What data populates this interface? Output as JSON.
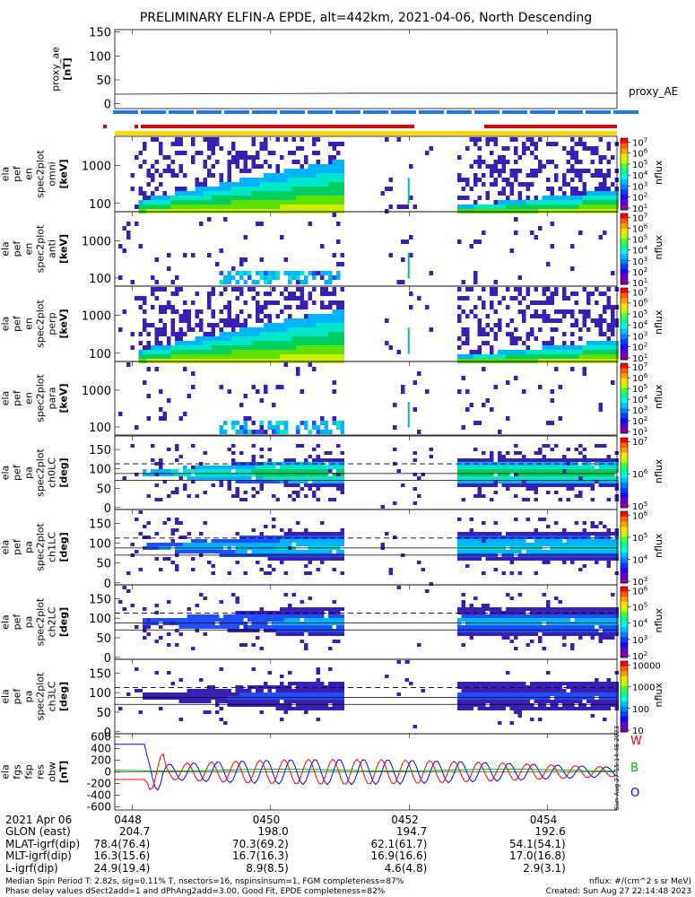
{
  "title": "PRELIMINARY ELFIN-A EPDE, alt=442km, 2021-04-06, North Descending",
  "colors": {
    "red_bar": "#e00000",
    "blue_bar": "#1e7be8",
    "yellow_bar": "#ffd700",
    "green_line": "#00b000",
    "blue_line": "#0000ff",
    "red_line": "#ff0000"
  },
  "chart_data": [
    {
      "type": "line",
      "panel": "proxy_ae",
      "ylabel": "proxy_ae [nT]",
      "legend": "proxy_AE",
      "ylim": [
        -10,
        155
      ],
      "yticks": [
        0,
        50,
        100,
        150
      ],
      "x": [
        "04:47:45",
        "04:51:10",
        "04:55:00"
      ],
      "values": [
        20,
        22,
        22
      ]
    },
    {
      "type": "heatmap",
      "panel": "ela_pef_en_spec2plot_omni",
      "ylabel_lines": [
        "ela",
        "pef",
        "en",
        "spec2plot",
        "omni",
        "[keV]"
      ],
      "yticks": [
        100,
        1000
      ],
      "colorbar_ticks": [
        "10^1",
        "10^2",
        "10^3",
        "10^4",
        "10^5",
        "10^6",
        "10^7"
      ],
      "colorbar_label": "nflux"
    },
    {
      "type": "heatmap",
      "panel": "ela_pef_en_spec2plot_anti",
      "ylabel_lines": [
        "ela",
        "pef",
        "en",
        "spec2plot",
        "anti",
        "[keV]"
      ],
      "yticks": [
        100,
        1000
      ],
      "colorbar_ticks": [
        "10^1",
        "10^2",
        "10^3",
        "10^4",
        "10^5",
        "10^6",
        "10^7"
      ],
      "colorbar_label": "nflux"
    },
    {
      "type": "heatmap",
      "panel": "ela_pef_en_spec2plot_perp",
      "ylabel_lines": [
        "ela",
        "pef",
        "en",
        "spec2plot",
        "perp",
        "[keV]"
      ],
      "yticks": [
        100,
        1000
      ],
      "colorbar_ticks": [
        "10^1",
        "10^2",
        "10^3",
        "10^4",
        "10^5",
        "10^6",
        "10^7"
      ],
      "colorbar_label": "nflux"
    },
    {
      "type": "heatmap",
      "panel": "ela_pef_en_spec2plot_para",
      "ylabel_lines": [
        "ela",
        "pef",
        "en",
        "spec2plot",
        "para",
        "[keV]"
      ],
      "yticks": [
        100,
        1000
      ],
      "colorbar_ticks": [
        "10^1",
        "10^2",
        "10^3",
        "10^4",
        "10^5",
        "10^6",
        "10^7"
      ],
      "colorbar_label": "nflux"
    },
    {
      "type": "heatmap",
      "panel": "ela_pef_pa_spec2plot_ch0LC",
      "ylabel_lines": [
        "ela",
        "pef",
        "pa",
        "spec2plot",
        "ch0LC",
        "[deg]"
      ],
      "yticks": [
        0,
        50,
        100,
        150
      ],
      "colorbar_ticks": [
        "10^5",
        "10^6",
        "10^7"
      ],
      "colorbar_label": "nflux"
    },
    {
      "type": "heatmap",
      "panel": "ela_pef_pa_spec2plot_ch1LC",
      "ylabel_lines": [
        "ela",
        "pef",
        "pa",
        "spec2plot",
        "ch1LC",
        "[deg]"
      ],
      "yticks": [
        0,
        50,
        100,
        150
      ],
      "colorbar_ticks": [
        "10^3",
        "10^4",
        "10^5",
        "10^6"
      ],
      "colorbar_label": "nflux"
    },
    {
      "type": "heatmap",
      "panel": "ela_pef_pa_spec2plot_ch2LC",
      "ylabel_lines": [
        "ela",
        "pef",
        "pa",
        "spec2plot",
        "ch2LC",
        "[deg]"
      ],
      "yticks": [
        0,
        50,
        100,
        150
      ],
      "colorbar_ticks": [
        "10^2",
        "10^3",
        "10^4",
        "10^5",
        "10^6"
      ],
      "colorbar_label": "nflux"
    },
    {
      "type": "heatmap",
      "panel": "ela_pef_pa_spec2plot_ch3LC",
      "ylabel_lines": [
        "ela",
        "pef",
        "pa",
        "spec2plot",
        "ch3LC",
        "[deg]"
      ],
      "yticks": [
        0,
        50,
        100,
        150
      ],
      "colorbar_ticks": [
        "10",
        "100",
        "1000",
        "10000"
      ],
      "colorbar_label": "nflux"
    },
    {
      "type": "line",
      "panel": "ela_fgs_fsp_res_obw",
      "ylabel_lines": [
        "ela",
        "fgs",
        "fsp",
        "res",
        "obw",
        "[nT]"
      ],
      "yticks": [
        -600,
        -400,
        -200,
        0,
        200,
        400,
        600
      ],
      "ylim": [
        -650,
        650
      ],
      "legend": [
        "W",
        "B",
        "O"
      ]
    }
  ],
  "xaxis": {
    "row_label": "2021 Apr 06",
    "ticks": [
      "0448",
      "0450",
      "0452",
      "0454"
    ]
  },
  "ephemeris": [
    {
      "label": "GLON (east)",
      "values": [
        "204.7",
        "198.0",
        "194.7",
        "192.6"
      ]
    },
    {
      "label": "MLAT-igrf(dip)",
      "values": [
        "78.4(76.4)",
        "70.3(69.2)",
        "62.1(61.7)",
        "54.1(54.1)"
      ]
    },
    {
      "label": "MLT-igrf(dip)",
      "values": [
        "16.3(15.6)",
        "16.7(16.3)",
        "16.9(16.6)",
        "17.0(16.8)"
      ]
    },
    {
      "label": "L-igrf(dip)",
      "values": [
        "24.9(19.4)",
        "8.9(8.5)",
        "4.6(4.8)",
        "2.9(3.1)"
      ]
    }
  ],
  "footer": {
    "line1_left": "Median Spin Period T: 2.82s, sig=0.11% T, nsectors=16, nspinsinsum=1, FGM completeness=87%",
    "line2_left": "Phase delay values dSect2add=1 and dPhAng2add=3.00, Good Fit, EPDE completeness=82%",
    "line1_right": "nflux: #/(cm^2 s sr MeV)",
    "line2_right": "Created: Sun Aug 27 22:14:48 2023",
    "side_stamp": "Sun Aug 27 15:14:48 2023"
  }
}
